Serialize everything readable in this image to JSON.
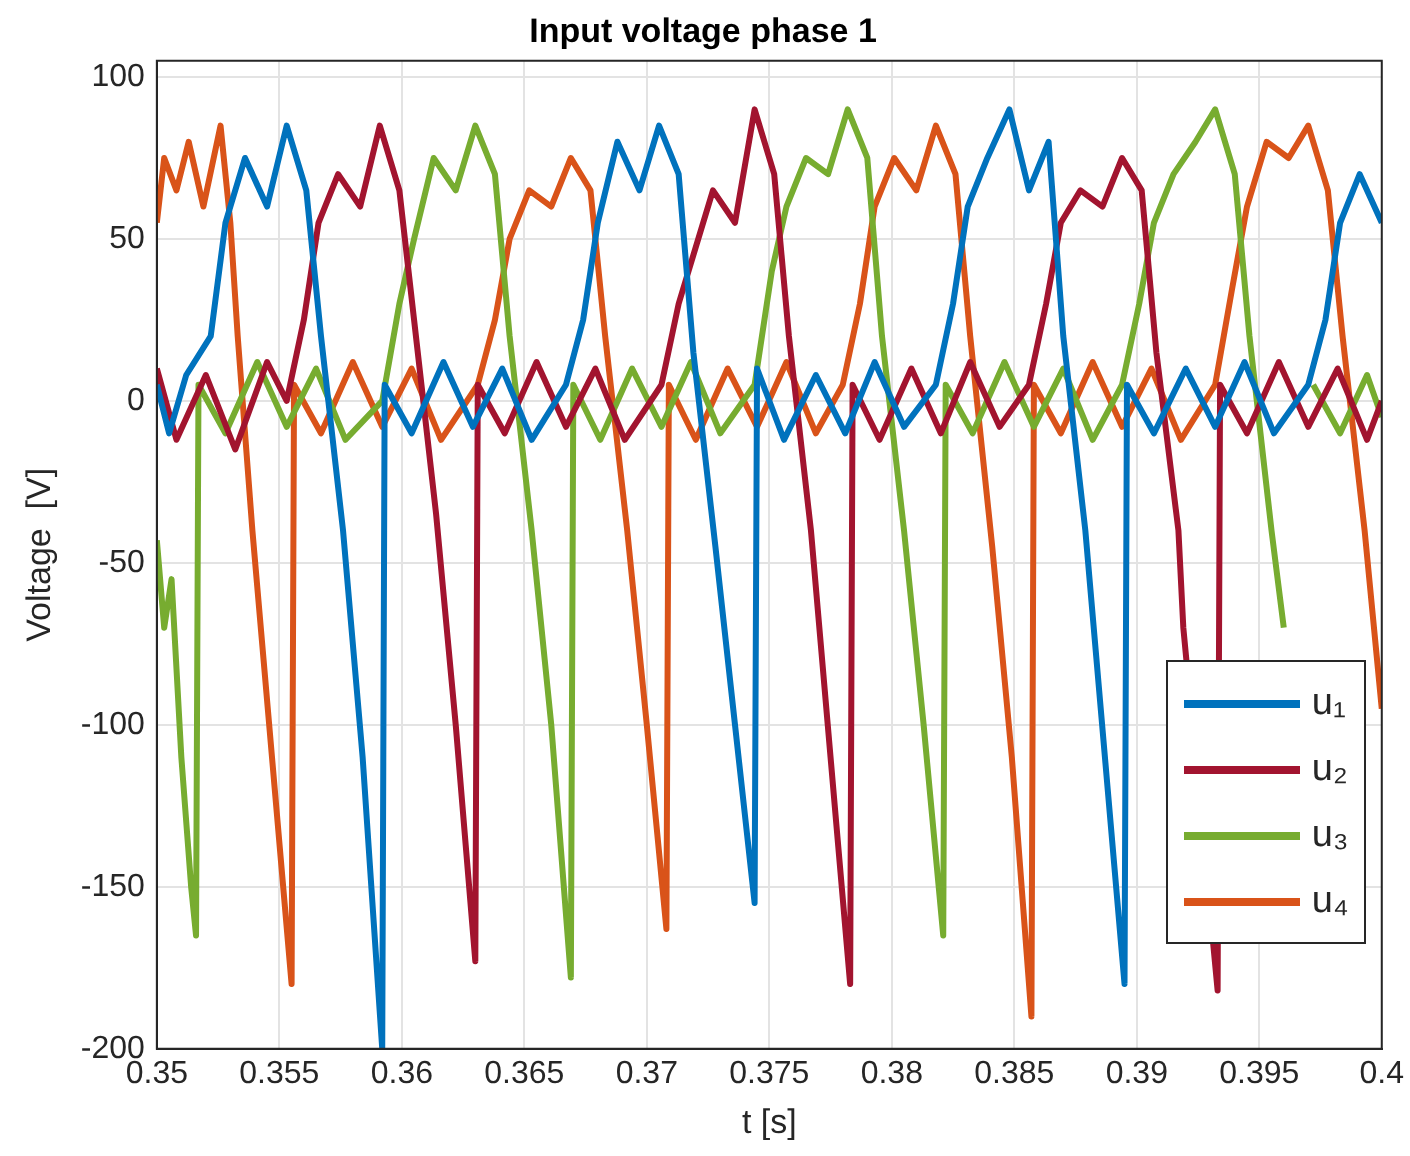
{
  "chart_data": {
    "type": "line",
    "title": "Input voltage phase 1",
    "xlabel": "t [s]",
    "ylabel": "Voltage  [V]",
    "xlim": [
      0.35,
      0.4
    ],
    "xticks": [
      0.35,
      0.355,
      0.36,
      0.365,
      0.37,
      0.375,
      0.38,
      0.385,
      0.39,
      0.395,
      0.4
    ],
    "ylim": [
      -200,
      105
    ],
    "yticks": [
      -200,
      -150,
      -100,
      -50,
      0,
      50,
      100
    ],
    "grid": true,
    "legend": "bottom right",
    "marker": "none",
    "line_style": "solid",
    "series": [
      {
        "name": "u₁",
        "color": "#0072bd",
        "x": [
          0.35,
          0.3505,
          0.3512,
          0.3522,
          0.3528,
          0.3536,
          0.3545,
          0.3553,
          0.3561,
          0.3567,
          0.3576,
          0.3584,
          0.3592,
          0.3593,
          0.3604,
          0.3617,
          0.3629,
          0.3641,
          0.3653,
          0.3667,
          0.3674,
          0.368,
          0.3688,
          0.3697,
          0.3705,
          0.3713,
          0.3719,
          0.3728,
          0.3736,
          0.3744,
          0.3745,
          0.3756,
          0.3769,
          0.3781,
          0.3793,
          0.3805,
          0.3818,
          0.3825,
          0.3831,
          0.3839,
          0.3848,
          0.3856,
          0.3864,
          0.387,
          0.3879,
          0.3887,
          0.3895,
          0.3896,
          0.3907,
          0.392,
          0.3932,
          0.3944,
          0.3956,
          0.397,
          0.3977,
          0.3983,
          0.3991,
          0.4
        ],
        "values": [
          5,
          -10,
          8,
          20,
          55,
          75,
          60,
          85,
          65,
          20,
          -40,
          -110,
          -200,
          5,
          -10,
          12,
          -8,
          10,
          -12,
          5,
          25,
          55,
          80,
          65,
          85,
          70,
          15,
          -45,
          -100,
          -155,
          10,
          -12,
          8,
          -10,
          12,
          -8,
          5,
          30,
          60,
          75,
          90,
          65,
          80,
          20,
          -40,
          -110,
          -180,
          5,
          -10,
          10,
          -8,
          12,
          -10,
          5,
          25,
          55,
          70,
          55
        ]
      },
      {
        "name": "u₂",
        "color": "#a2142f",
        "x": [
          0.35,
          0.3508,
          0.352,
          0.3532,
          0.3545,
          0.3553,
          0.356,
          0.3566,
          0.3574,
          0.3583,
          0.3591,
          0.3599,
          0.3605,
          0.3614,
          0.3622,
          0.363,
          0.3631,
          0.3642,
          0.3655,
          0.3667,
          0.3679,
          0.3691,
          0.3706,
          0.3713,
          0.3719,
          0.3727,
          0.3736,
          0.3744,
          0.3752,
          0.3758,
          0.3767,
          0.3775,
          0.3783,
          0.3784,
          0.3795,
          0.3808,
          0.382,
          0.3832,
          0.3844,
          0.3856,
          0.3863,
          0.3869,
          0.3877,
          0.3886,
          0.3894,
          0.3902,
          0.3908,
          0.3917,
          0.3919,
          0.3933,
          0.3934,
          0.3945,
          0.3958,
          0.397,
          0.3982,
          0.3994,
          0.4
        ],
        "values": [
          10,
          -12,
          8,
          -15,
          12,
          0,
          25,
          55,
          70,
          60,
          85,
          65,
          25,
          -35,
          -100,
          -173,
          5,
          -10,
          12,
          -8,
          10,
          -12,
          5,
          30,
          45,
          65,
          55,
          90,
          70,
          20,
          -40,
          -110,
          -180,
          5,
          -12,
          10,
          -10,
          12,
          -8,
          5,
          30,
          55,
          65,
          60,
          75,
          65,
          15,
          -40,
          -70,
          -182,
          5,
          -10,
          12,
          -8,
          10,
          -12,
          0
        ]
      },
      {
        "name": "u₃",
        "color": "#77ac30",
        "x": [
          0.35,
          0.3503,
          0.3506,
          0.351,
          0.3514,
          0.3516,
          0.3517,
          0.3528,
          0.3541,
          0.3553,
          0.3565,
          0.3577,
          0.3592,
          0.3599,
          0.3605,
          0.3613,
          0.3622,
          0.363,
          0.3638,
          0.3644,
          0.3653,
          0.3661,
          0.3669,
          0.367,
          0.3681,
          0.3694,
          0.3706,
          0.3718,
          0.373,
          0.3744,
          0.3751,
          0.3757,
          0.3765,
          0.3774,
          0.3782,
          0.379,
          0.3796,
          0.3805,
          0.3813,
          0.3821,
          0.3822,
          0.3833,
          0.3846,
          0.3858,
          0.387,
          0.3882,
          0.3894,
          0.3901,
          0.3907,
          0.3915,
          0.3924,
          0.3932,
          0.394,
          0.3946,
          0.3955,
          0.396,
          0.3971,
          0.3972,
          0.3983,
          0.3994,
          0.4
        ],
        "values": [
          -43,
          -70,
          -55,
          -110,
          -150,
          -165,
          5,
          -10,
          12,
          -8,
          10,
          -12,
          0,
          30,
          50,
          75,
          65,
          85,
          70,
          20,
          -40,
          -100,
          -178,
          5,
          -12,
          10,
          -8,
          12,
          -10,
          5,
          40,
          60,
          75,
          70,
          90,
          75,
          20,
          -40,
          -100,
          -165,
          5,
          -10,
          12,
          -8,
          10,
          -12,
          5,
          30,
          55,
          70,
          80,
          90,
          70,
          20,
          -40,
          -70,
          null,
          5,
          -10,
          8,
          -5
        ]
      },
      {
        "name": "u₄",
        "color": "#d95319",
        "x": [
          0.35,
          0.3503,
          0.3508,
          0.3513,
          0.3519,
          0.3526,
          0.353,
          0.3533,
          0.3539,
          0.3547,
          0.3555,
          0.3556,
          0.3567,
          0.358,
          0.3592,
          0.3604,
          0.3616,
          0.3631,
          0.3638,
          0.3644,
          0.3652,
          0.3661,
          0.3669,
          0.3677,
          0.3683,
          0.3692,
          0.37,
          0.3708,
          0.3709,
          0.372,
          0.3733,
          0.3745,
          0.3757,
          0.3769,
          0.378,
          0.3787,
          0.3793,
          0.3801,
          0.381,
          0.3818,
          0.3826,
          0.3832,
          0.3841,
          0.3849,
          0.3857,
          0.3858,
          0.3869,
          0.3882,
          0.3894,
          0.3906,
          0.3918,
          0.3932,
          0.3939,
          0.3945,
          0.3953,
          0.3962,
          0.397,
          0.3978,
          0.3984,
          0.3993,
          0.4
        ],
        "values": [
          55,
          75,
          65,
          80,
          60,
          85,
          55,
          20,
          -40,
          -110,
          -180,
          5,
          -10,
          12,
          -8,
          10,
          -12,
          5,
          25,
          50,
          65,
          60,
          75,
          65,
          20,
          -40,
          -100,
          -163,
          5,
          -12,
          10,
          -8,
          12,
          -10,
          5,
          30,
          60,
          75,
          65,
          85,
          70,
          20,
          -45,
          -110,
          -190,
          5,
          -10,
          12,
          -8,
          10,
          -12,
          5,
          35,
          60,
          80,
          75,
          85,
          65,
          20,
          -40,
          -95
        ]
      }
    ]
  }
}
